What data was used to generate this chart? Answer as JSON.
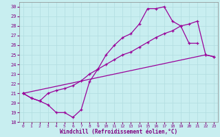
{
  "xlabel": "Windchill (Refroidissement éolien,°C)",
  "xlim": [
    -0.5,
    23.5
  ],
  "ylim": [
    18,
    30.5
  ],
  "yticks": [
    18,
    19,
    20,
    21,
    22,
    23,
    24,
    25,
    26,
    27,
    28,
    29,
    30
  ],
  "xticks": [
    0,
    1,
    2,
    3,
    4,
    5,
    6,
    7,
    8,
    9,
    10,
    11,
    12,
    13,
    14,
    15,
    16,
    17,
    18,
    19,
    20,
    21,
    22,
    23
  ],
  "bg_color": "#c8eef0",
  "grid_color": "#b0dce0",
  "line_color": "#990099",
  "line1_x": [
    0,
    1,
    2,
    3,
    4,
    5,
    6,
    7,
    8,
    9,
    10,
    11,
    12,
    13,
    14,
    15,
    16,
    17,
    18,
    19,
    20,
    21
  ],
  "line1_y": [
    21.0,
    20.5,
    20.2,
    19.8,
    19.0,
    19.0,
    18.5,
    19.3,
    22.2,
    23.5,
    25.0,
    26.0,
    26.8,
    27.2,
    28.2,
    29.8,
    29.8,
    30.0,
    28.5,
    28.0,
    26.2,
    26.2
  ],
  "line2_x": [
    0,
    1,
    2,
    3,
    4,
    5,
    6,
    7,
    8,
    9,
    10,
    11,
    12,
    13,
    14,
    15,
    16,
    17,
    18,
    19,
    20,
    21,
    22,
    23
  ],
  "line2_y": [
    21.0,
    20.5,
    20.2,
    21.0,
    21.3,
    21.5,
    21.8,
    22.3,
    23.0,
    23.5,
    24.0,
    24.5,
    25.0,
    25.3,
    25.8,
    26.3,
    26.8,
    27.2,
    27.5,
    28.0,
    28.2,
    28.5,
    25.0,
    24.8
  ],
  "line3_x": [
    0,
    22,
    23
  ],
  "line3_y": [
    21.0,
    25.0,
    24.8
  ],
  "xlabel_color": "#800080",
  "xlabel_fontsize": 5.5,
  "tick_fontsize": 4.5,
  "tick_color": "#800080"
}
